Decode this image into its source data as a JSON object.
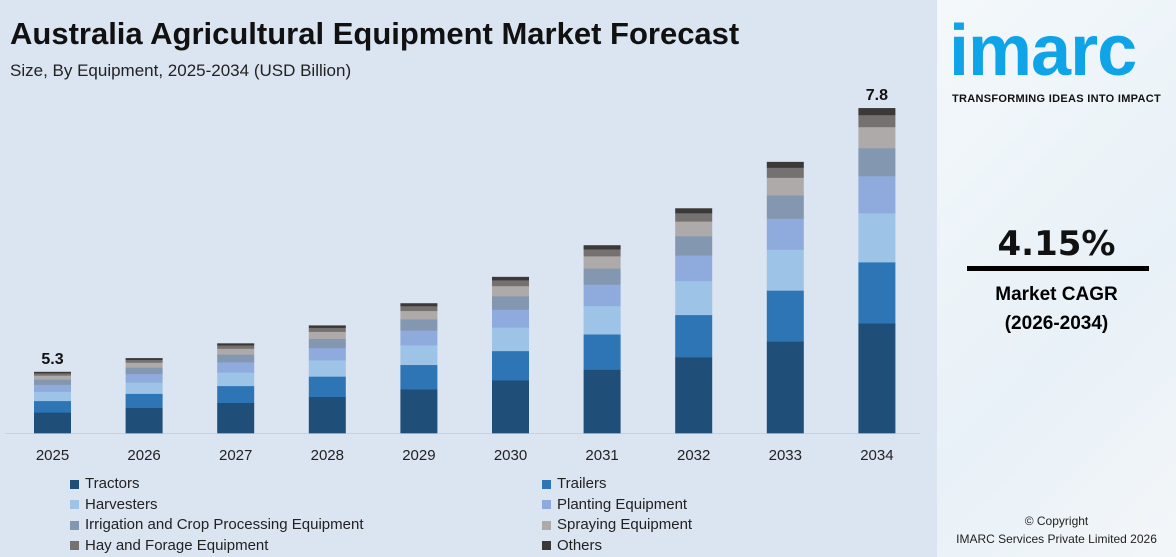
{
  "title": "Australia Agricultural Equipment Market Forecast",
  "subtitle": "Size, By Equipment, 2025-2034 (USD Billion)",
  "side": {
    "logo": "imarc",
    "tagline": "TRANSFORMING IDEAS INTO IMPACT",
    "cagr": "4.15%",
    "cagr_label": "Market CAGR",
    "cagr_period": "(2026-2034)",
    "copyright": "© Copyright",
    "company": "IMARC Services Private Limited 2026"
  },
  "chart_data": {
    "type": "bar",
    "stacked": true,
    "title": "Australia Agricultural Equipment Market Forecast",
    "ylabel": "USD Billion",
    "categories": [
      "2025",
      "2026",
      "2027",
      "2028",
      "2029",
      "2030",
      "2031",
      "2032",
      "2033",
      "2034"
    ],
    "totals": [
      5.3,
      5.43,
      5.57,
      5.74,
      5.95,
      6.2,
      6.5,
      6.85,
      7.29,
      7.8
    ],
    "data_labels": {
      "2025": "5.3",
      "2034": "7.8"
    },
    "series": [
      {
        "name": "Tractors",
        "color": "#1f4e79",
        "share": 0.338
      },
      {
        "name": "Trailers",
        "color": "#2e75b6",
        "share": 0.188
      },
      {
        "name": "Harvesters",
        "color": "#9dc3e6",
        "share": 0.151
      },
      {
        "name": "Planting Equipment",
        "color": "#8faadc",
        "share": 0.114
      },
      {
        "name": "Irrigation and Crop Processing Equipment",
        "color": "#8497b0",
        "share": 0.086
      },
      {
        "name": "Spraying Equipment",
        "color": "#aeaaaa",
        "share": 0.065
      },
      {
        "name": "Hay and Forage Equipment",
        "color": "#767171",
        "share": 0.037
      },
      {
        "name": "Others",
        "color": "#3b3838",
        "share": 0.021
      }
    ],
    "legend_position": "bottom"
  }
}
